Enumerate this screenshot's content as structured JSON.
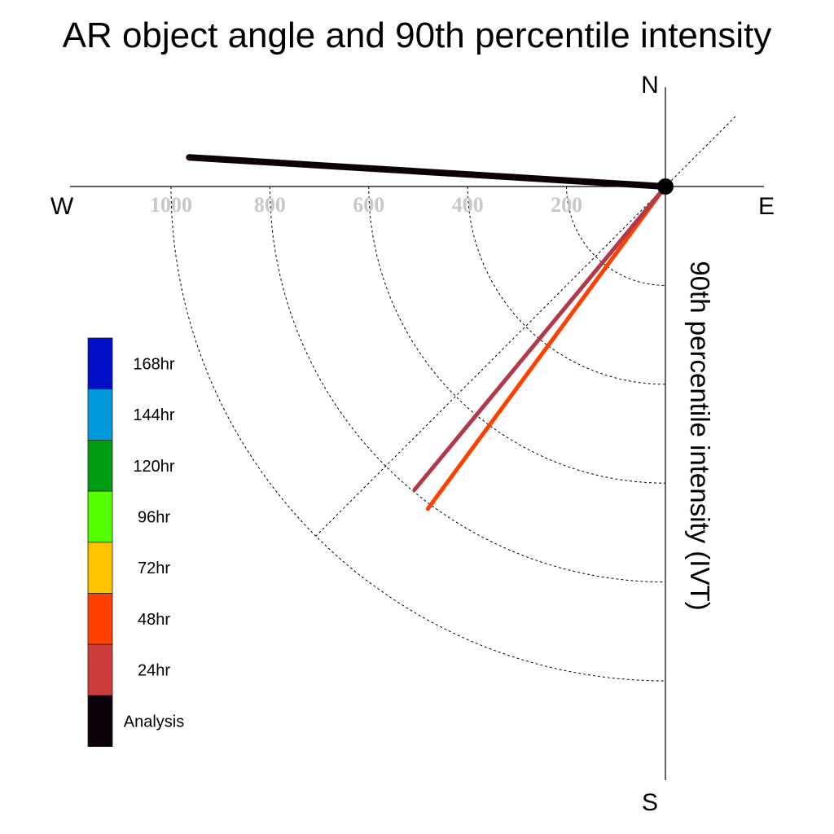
{
  "chart_data": {
    "type": "polar-line",
    "title": "AR object angle and 90th percentile intensity",
    "radial_label": "90th percentile intensity (IVT)",
    "compass": {
      "n": "N",
      "e": "E",
      "s": "S",
      "w": "W"
    },
    "radial_ticks": [
      200,
      400,
      600,
      800,
      1000
    ],
    "radial_max": 1000,
    "radial_ring_values": [
      200,
      400,
      600,
      800,
      1000
    ],
    "legend": [
      {
        "label": "168hr",
        "color": "#0010c6"
      },
      {
        "label": "144hr",
        "color": "#0099dc"
      },
      {
        "label": "120hr",
        "color": "#009c14"
      },
      {
        "label": "96hr",
        "color": "#55ff00"
      },
      {
        "label": "72hr",
        "color": "#ffc400"
      },
      {
        "label": "48hr",
        "color": "#ff4000"
      },
      {
        "label": "24hr",
        "color": "#cc3c3c"
      },
      {
        "label": "Analysis",
        "color": "#0c0008"
      }
    ],
    "series": [
      {
        "name": "Analysis",
        "angle_deg": 273.5,
        "intensity": 965,
        "color": "#0c0008",
        "width": 8
      },
      {
        "name": "24hr",
        "angle_deg": 219.6,
        "intensity": 796,
        "color": "#b03a4a",
        "width": 5
      },
      {
        "name": "48hr",
        "angle_deg": 216.4,
        "intensity": 810,
        "color": "#ff4000",
        "width": 5
      }
    ],
    "center_marker": true,
    "grid": "dotted arcs in SW quadrant"
  }
}
